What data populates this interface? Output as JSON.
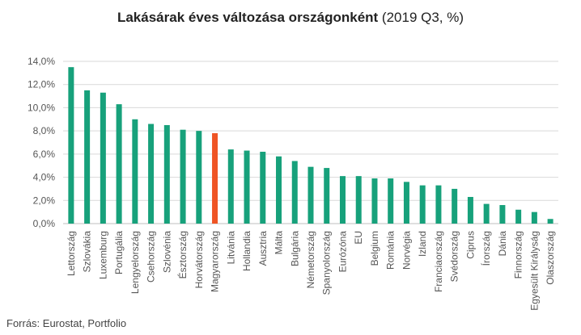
{
  "title": {
    "bold": "Lakásárak éves változása országonként",
    "normal": " (2019 Q3, %)"
  },
  "source": "Forrás: Eurostat, Portfolio",
  "colors": {
    "default_bar": "#17a17b",
    "highlight_bar": "#ef5424",
    "grid": "#d9d9d9",
    "axis_text": "#555555"
  },
  "chart_data": {
    "type": "bar",
    "title": "Lakásárak éves változása országonként (2019 Q3, %)",
    "xlabel": "",
    "ylabel": "",
    "ylim": [
      0,
      14
    ],
    "yticks": [
      0,
      2,
      4,
      6,
      8,
      10,
      12,
      14
    ],
    "ytick_labels": [
      "0,0%",
      "2,0%",
      "4,0%",
      "6,0%",
      "8,0%",
      "10,0%",
      "12,0%",
      "14,0%"
    ],
    "grid": true,
    "highlight": "Magyarország",
    "categories": [
      "Lettország",
      "Szlovákia",
      "Luxemburg",
      "Portugália",
      "Lengyelország",
      "Csehország",
      "Szlovénia",
      "Észtország",
      "Horvátország",
      "Magyarország",
      "Litvánia",
      "Hollandia",
      "Ausztria",
      "Málta",
      "Bulgária",
      "Németország",
      "Spanyolország",
      "Eurózóna",
      "EU",
      "Belgium",
      "Románia",
      "Norvégia",
      "Izland",
      "Franciaország",
      "Svédország",
      "Ciprus",
      "Írország",
      "Dánia",
      "Finnország",
      "Egyesült Királyság",
      "Olaszország"
    ],
    "values": [
      13.5,
      11.5,
      11.3,
      10.3,
      9.0,
      8.6,
      8.5,
      8.1,
      8.0,
      7.8,
      6.4,
      6.3,
      6.2,
      5.8,
      5.4,
      4.9,
      4.8,
      4.1,
      4.1,
      3.9,
      3.9,
      3.6,
      3.3,
      3.3,
      3.0,
      2.3,
      1.7,
      1.6,
      1.2,
      1.0,
      0.4
    ]
  }
}
